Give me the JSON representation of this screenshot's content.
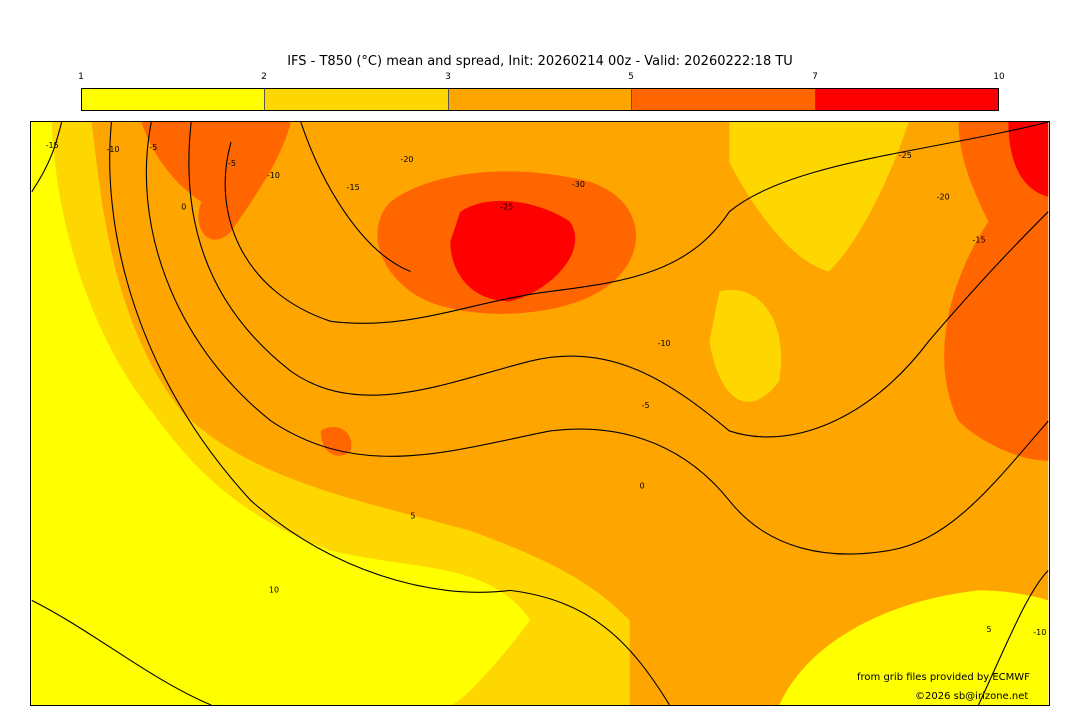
{
  "title": "IFS - T850 (°C) mean and spread, Init: 20260214 00z - Valid: 20260222:18 TU",
  "colorbar": {
    "ticks": [
      "1",
      "2",
      "3",
      "5",
      "7",
      "10"
    ],
    "colors": [
      "#ffff00",
      "#ffd700",
      "#ffa500",
      "#ff6600",
      "#ff0000"
    ]
  },
  "contour_labels": [
    "-15",
    "-10",
    "-5",
    "-10",
    "-5",
    "0",
    "-20",
    "-15",
    "-25",
    "-30",
    "-25",
    "-20",
    "-15",
    "-10",
    "-5",
    "0",
    "5",
    "10",
    "5",
    "-10"
  ],
  "credits": {
    "source": "from grib files provided by ECMWF",
    "copyright": "©2026 sb@irizone.net"
  }
}
